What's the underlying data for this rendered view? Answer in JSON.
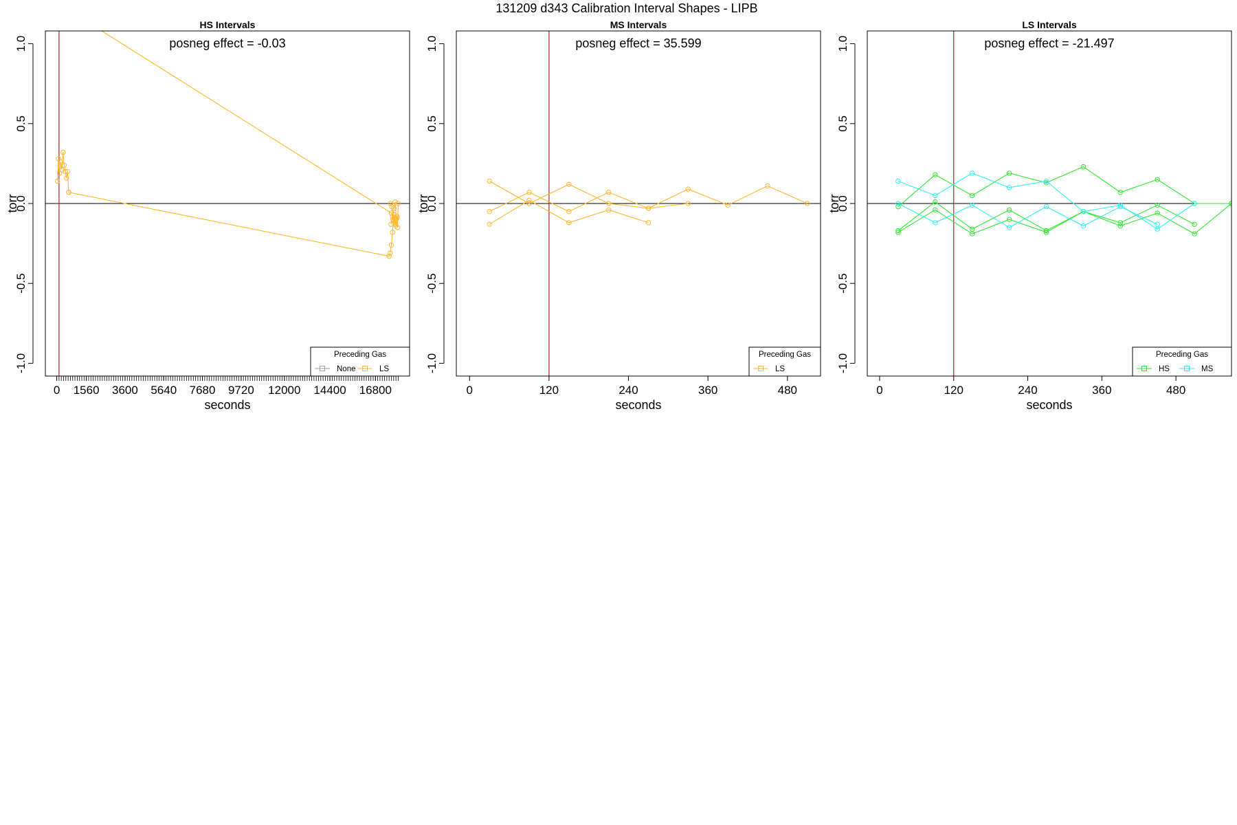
{
  "page": {
    "title": "131209   d343   Calibration Interval Shapes - LIPB"
  },
  "colors": {
    "None": "#9e9e9e",
    "LS": "#ffb732",
    "HS": "#32e632",
    "MS": "#32f0f0",
    "vline": "#b22222",
    "hline": "#000000"
  },
  "chart_data": [
    {
      "type": "line",
      "title": "HS Intervals",
      "annotation": "posneg effect = -0.03",
      "xlabel": "seconds",
      "ylabel": "torr",
      "xlim": [
        -600,
        18600
      ],
      "ylim": [
        -1.08,
        1.08
      ],
      "xticks": [
        0,
        1560,
        3600,
        5640,
        7680,
        9720,
        12000,
        14400,
        16800
      ],
      "minor_xticks_from": 0,
      "minor_xticks_to": 18000,
      "minor_xticks_step": 120,
      "yticks": [
        -1.0,
        -0.5,
        0.0,
        0.5,
        1.0
      ],
      "ytick_labels": [
        "-1.0",
        "-0.5",
        "0.0",
        "0.5",
        "1.0"
      ],
      "vline_x": 120,
      "hline_y": 0.0,
      "legend": {
        "title": "Preceding Gas",
        "position": "bottom-right",
        "entries": [
          "None",
          "LS"
        ]
      },
      "series": [
        {
          "name": "LS",
          "x": [
            30,
            90,
            150,
            210,
            270,
            330,
            390,
            450,
            510,
            570,
            630
          ],
          "y": [
            0.14,
            0.28,
            0.19,
            0.26,
            0.21,
            0.32,
            0.24,
            0.2,
            0.16,
            0.2,
            0.07
          ]
        },
        {
          "name": "LS",
          "x": [
            630,
            17520
          ],
          "y": [
            0.07,
            -0.33
          ]
        },
        {
          "name": "LS",
          "x": [
            90,
            17640
          ],
          "y": [
            1.25,
            -0.06
          ]
        },
        {
          "name": "LS",
          "x": [
            17520,
            17580,
            17640,
            17700,
            17760,
            17820,
            17880,
            17940
          ],
          "y": [
            -0.33,
            -0.31,
            -0.26,
            -0.18,
            -0.07,
            -0.12,
            -0.14,
            -0.08
          ]
        },
        {
          "name": "LS",
          "x": [
            17600,
            17660,
            17720,
            17780,
            17840,
            17900,
            17960,
            18000
          ],
          "y": [
            0.0,
            -0.02,
            -0.1,
            -0.03,
            0.01,
            -0.1,
            -0.15,
            0.0
          ]
        },
        {
          "name": "LS",
          "x": [
            17620,
            17700,
            17780,
            17860,
            17940
          ],
          "y": [
            -0.13,
            -0.08,
            -0.11,
            -0.13,
            -0.09
          ]
        }
      ]
    },
    {
      "type": "line",
      "title": "MS Intervals",
      "annotation": "posneg effect = 35.599",
      "xlabel": "seconds",
      "ylabel": "torr",
      "xlim": [
        -20,
        530
      ],
      "ylim": [
        -1.08,
        1.08
      ],
      "xticks": [
        0,
        120,
        240,
        360,
        480
      ],
      "yticks": [
        -1.0,
        -0.5,
        0.0,
        0.5,
        1.0
      ],
      "ytick_labels": [
        "-1.0",
        "-0.5",
        "0.0",
        "0.5",
        "1.0"
      ],
      "vline_x": 120,
      "hline_y": 0.0,
      "legend": {
        "title": "Preceding Gas",
        "position": "bottom-right",
        "entries": [
          "LS"
        ]
      },
      "series": [
        {
          "name": "LS",
          "x": [
            30,
            90,
            150,
            210,
            270,
            330,
            390,
            450,
            510
          ],
          "y": [
            0.14,
            0.0,
            0.12,
            0.0,
            -0.03,
            0.09,
            -0.01,
            0.11,
            0.0
          ]
        },
        {
          "name": "LS",
          "x": [
            30,
            90,
            150,
            210,
            270,
            330
          ],
          "y": [
            -0.05,
            0.07,
            -0.05,
            0.07,
            -0.03,
            0.0
          ]
        },
        {
          "name": "LS",
          "x": [
            30,
            90,
            150,
            210,
            270
          ],
          "y": [
            -0.13,
            0.02,
            -0.12,
            -0.04,
            -0.12
          ]
        }
      ]
    },
    {
      "type": "line",
      "title": "LS Intervals",
      "annotation": "posneg effect = -21.497",
      "xlabel": "seconds",
      "ylabel": "torr",
      "xlim": [
        -20,
        570
      ],
      "ylim": [
        -1.08,
        1.08
      ],
      "xticks": [
        0,
        120,
        240,
        360,
        480
      ],
      "yticks": [
        -1.0,
        -0.5,
        0.0,
        0.5,
        1.0
      ],
      "ytick_labels": [
        "-1.0",
        "-0.5",
        "0.0",
        "0.5",
        "1.0"
      ],
      "vline_x": 120,
      "hline_y": 0.0,
      "legend": {
        "title": "Preceding Gas",
        "position": "bottom-right",
        "entries": [
          "HS",
          "MS"
        ]
      },
      "series": [
        {
          "name": "HS",
          "x": [
            30,
            90,
            150,
            210,
            270,
            330,
            390,
            450,
            510,
            570
          ],
          "y": [
            -0.02,
            0.18,
            0.05,
            0.19,
            0.13,
            0.23,
            0.07,
            0.15,
            0.0,
            0.0
          ]
        },
        {
          "name": "HS",
          "x": [
            30,
            90,
            150,
            210,
            270,
            330,
            390,
            450,
            510
          ],
          "y": [
            -0.17,
            0.01,
            -0.16,
            -0.04,
            -0.17,
            -0.05,
            -0.12,
            -0.01,
            -0.13
          ]
        },
        {
          "name": "HS",
          "x": [
            30,
            90,
            150,
            210,
            270,
            330,
            390,
            450,
            510,
            570
          ],
          "y": [
            -0.18,
            -0.04,
            -0.19,
            -0.1,
            -0.18,
            -0.05,
            -0.14,
            -0.06,
            -0.19,
            0.0
          ]
        },
        {
          "name": "MS",
          "x": [
            30,
            90,
            150,
            210,
            270,
            330,
            390,
            450,
            510
          ],
          "y": [
            0.14,
            0.05,
            0.19,
            0.1,
            0.14,
            -0.05,
            -0.01,
            -0.16,
            0.0
          ]
        },
        {
          "name": "MS",
          "x": [
            30,
            90,
            150,
            210,
            270,
            330,
            390,
            450
          ],
          "y": [
            0.0,
            -0.12,
            -0.01,
            -0.15,
            -0.02,
            -0.14,
            -0.02,
            -0.13
          ]
        }
      ]
    }
  ]
}
